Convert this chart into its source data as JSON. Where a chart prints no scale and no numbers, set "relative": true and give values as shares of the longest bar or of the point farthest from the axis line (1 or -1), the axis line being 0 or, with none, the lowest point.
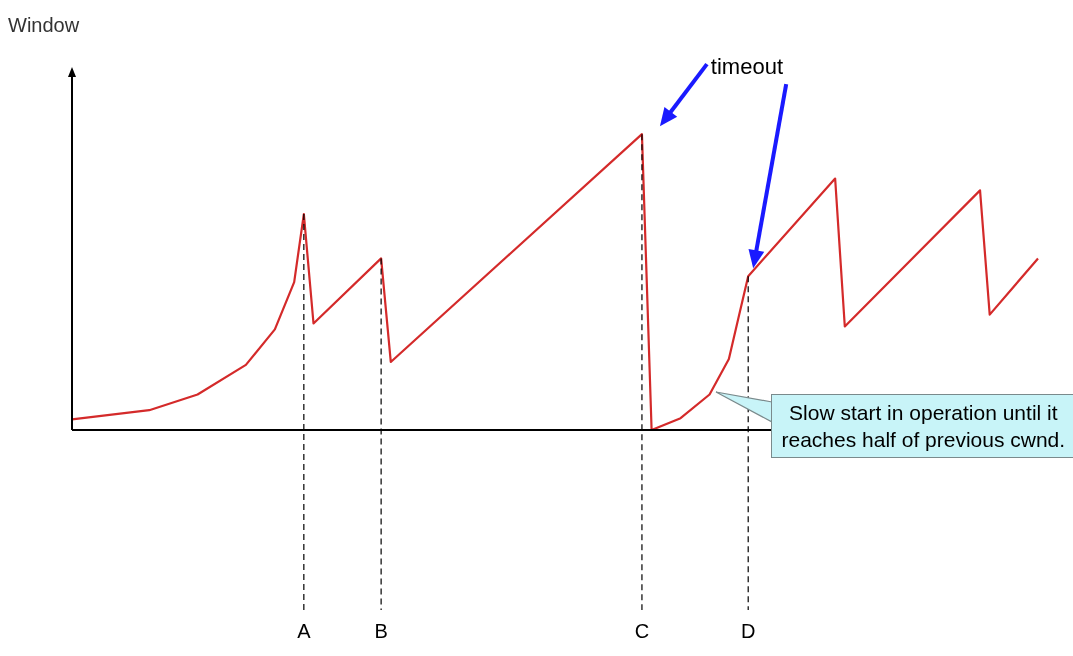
{
  "chart_data": {
    "type": "line",
    "ylabel": "Window",
    "relative": true,
    "tick_labels": "x",
    "grid": false,
    "legend": false,
    "marker": "none",
    "categories": [
      null,
      null,
      null,
      null,
      null,
      null,
      null,
      null,
      null,
      null,
      null,
      null,
      null,
      null,
      null,
      null,
      null,
      null,
      null,
      null,
      null,
      null,
      null,
      null,
      "A",
      null,
      null,
      null,
      null,
      null,
      null,
      null,
      "B",
      null,
      null,
      null,
      null,
      null,
      null,
      null,
      null,
      null,
      null,
      null,
      null,
      null,
      null,
      null,
      null,
      null,
      null,
      null,
      null,
      null,
      null,
      null,
      null,
      null,
      null,
      "C",
      null,
      null,
      null,
      null,
      null,
      null,
      null,
      null,
      null,
      null,
      "D",
      null,
      null,
      null,
      null,
      null,
      null,
      null,
      null,
      null,
      null,
      null,
      null,
      null,
      null,
      null,
      null,
      null,
      null,
      null,
      null,
      null,
      null,
      null,
      null,
      null,
      null,
      null,
      null,
      null,
      null
    ],
    "series": [
      {
        "color": "#d42a2a",
        "values": [
          0.036,
          null,
          null,
          null,
          null,
          null,
          null,
          null,
          0.067,
          null,
          null,
          null,
          null,
          0.12,
          null,
          null,
          null,
          null,
          0.22,
          null,
          null,
          0.34,
          null,
          0.5,
          0.73,
          0.36,
          null,
          null,
          null,
          null,
          null,
          null,
          0.58,
          0.23,
          null,
          null,
          null,
          null,
          null,
          null,
          null,
          null,
          null,
          null,
          null,
          null,
          null,
          null,
          null,
          null,
          null,
          null,
          null,
          null,
          null,
          null,
          null,
          null,
          null,
          1.0,
          0,
          null,
          null,
          0.04,
          null,
          null,
          0.12,
          null,
          0.24,
          0.38,
          0.52,
          null,
          null,
          null,
          null,
          null,
          null,
          null,
          null,
          0.85,
          0.35,
          null,
          null,
          null,
          null,
          null,
          null,
          null,
          null,
          null,
          null,
          null,
          null,
          null,
          0.81,
          0.39,
          null,
          null,
          null,
          null,
          0.58
        ]
      }
    ],
    "ref_lines": [
      {
        "axis": "x",
        "value": "A",
        "line_style": "dashed",
        "color": "#000000"
      },
      {
        "axis": "x",
        "value": "B",
        "line_style": "dashed",
        "color": "#000000"
      },
      {
        "axis": "x",
        "value": "C",
        "line_style": "dashed",
        "color": "#000000"
      },
      {
        "axis": "x",
        "value": "D",
        "line_style": "dashed",
        "color": "#000000"
      }
    ],
    "annotations": [
      "timeout",
      "Slow start in operation until it reaches half of previous cwnd."
    ]
  }
}
